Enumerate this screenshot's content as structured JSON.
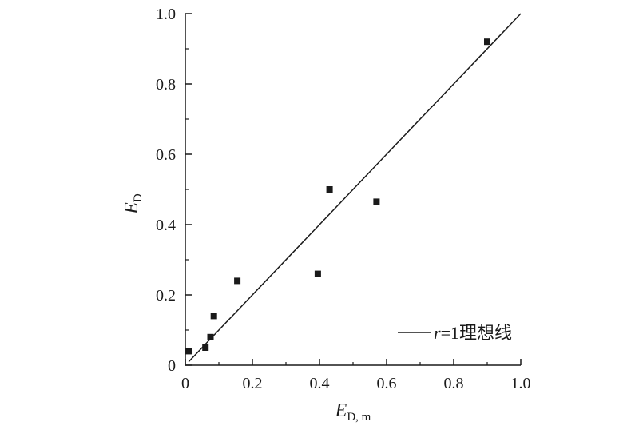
{
  "chart_data": {
    "type": "scatter",
    "xlabel": {
      "main": "E",
      "sub": "D, m"
    },
    "ylabel": {
      "main": "E",
      "sub": "D"
    },
    "xlim": [
      0,
      1.0
    ],
    "ylim": [
      0,
      1.0
    ],
    "x_ticks": [
      "0",
      "0.2",
      "0.4",
      "0.6",
      "0.8",
      "1.0"
    ],
    "y_ticks": [
      "0",
      "0.2",
      "0.4",
      "0.6",
      "0.8",
      "1.0"
    ],
    "grid": false,
    "series": [
      {
        "marker": "square",
        "color": "#1a1a1a",
        "points": [
          {
            "x": 0.01,
            "y": 0.04
          },
          {
            "x": 0.06,
            "y": 0.05
          },
          {
            "x": 0.075,
            "y": 0.08
          },
          {
            "x": 0.085,
            "y": 0.14
          },
          {
            "x": 0.155,
            "y": 0.24
          },
          {
            "x": 0.395,
            "y": 0.26
          },
          {
            "x": 0.43,
            "y": 0.5
          },
          {
            "x": 0.57,
            "y": 0.465
          },
          {
            "x": 0.9,
            "y": 0.92
          }
        ]
      }
    ],
    "reference_line": {
      "from": [
        0.01,
        0.01
      ],
      "to": [
        1.0,
        1.0
      ],
      "color": "#1a1a1a"
    },
    "legend": {
      "position": "bottom-right",
      "label_italic": "r",
      "label_rest": "=1理想线"
    }
  }
}
